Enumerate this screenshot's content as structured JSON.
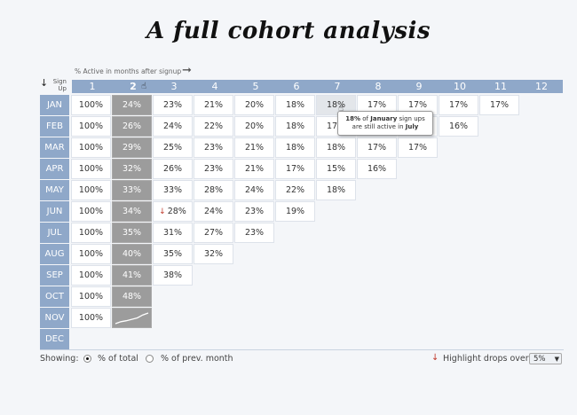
{
  "title": "A full cohort analysis",
  "subtitle": "% Active in months after signup",
  "signup_label_line1": "Sign",
  "signup_label_line2": "Up",
  "columns": [
    "1",
    "2",
    "3",
    "4",
    "5",
    "6",
    "7",
    "8",
    "9",
    "10",
    "11",
    "12"
  ],
  "selected_column": 1,
  "rows": [
    {
      "label": "JAN",
      "cells": [
        "100%",
        "24%",
        "23%",
        "21%",
        "20%",
        "18%",
        "18%",
        "17%",
        "17%",
        "17%",
        "17%"
      ]
    },
    {
      "label": "FEB",
      "cells": [
        "100%",
        "26%",
        "24%",
        "22%",
        "20%",
        "18%",
        "17%",
        "17%",
        "17%",
        "16%"
      ]
    },
    {
      "label": "MAR",
      "cells": [
        "100%",
        "29%",
        "25%",
        "23%",
        "21%",
        "18%",
        "18%",
        "17%",
        "17%"
      ]
    },
    {
      "label": "APR",
      "cells": [
        "100%",
        "32%",
        "26%",
        "23%",
        "21%",
        "17%",
        "15%",
        "16%"
      ]
    },
    {
      "label": "MAY",
      "cells": [
        "100%",
        "33%",
        "33%",
        "28%",
        "24%",
        "22%",
        "18%"
      ]
    },
    {
      "label": "JUN",
      "cells": [
        "100%",
        "34%",
        "28%",
        "24%",
        "23%",
        "19%"
      ]
    },
    {
      "label": "JUL",
      "cells": [
        "100%",
        "35%",
        "31%",
        "27%",
        "23%"
      ]
    },
    {
      "label": "AUG",
      "cells": [
        "100%",
        "40%",
        "35%",
        "32%"
      ]
    },
    {
      "label": "SEP",
      "cells": [
        "100%",
        "41%",
        "38%"
      ]
    },
    {
      "label": "OCT",
      "cells": [
        "100%",
        "48%"
      ]
    },
    {
      "label": "NOV",
      "cells": [
        "100%"
      ]
    },
    {
      "label": "DEC",
      "cells": []
    }
  ],
  "drop_marker": {
    "row": 5,
    "col": 2
  },
  "hover_cell": {
    "row": 0,
    "col": 6
  },
  "tooltip": {
    "value": "18%",
    "t1": " of ",
    "month": "January",
    "t2": " sign ups",
    "t3": "are still active in ",
    "target": "July"
  },
  "sparkline_values": [
    10,
    14,
    16,
    19,
    22,
    28,
    32
  ],
  "footer": {
    "showing_label": "Showing:",
    "option1": "% of total",
    "option2": "% of prev. month",
    "selected_option": 1,
    "highlight_label": "Highlight drops over:",
    "threshold": "5%"
  },
  "colors": {
    "header": "#8fa8c9",
    "highlight_column": "#9c9c9c",
    "drop_arrow": "#c0392b"
  }
}
